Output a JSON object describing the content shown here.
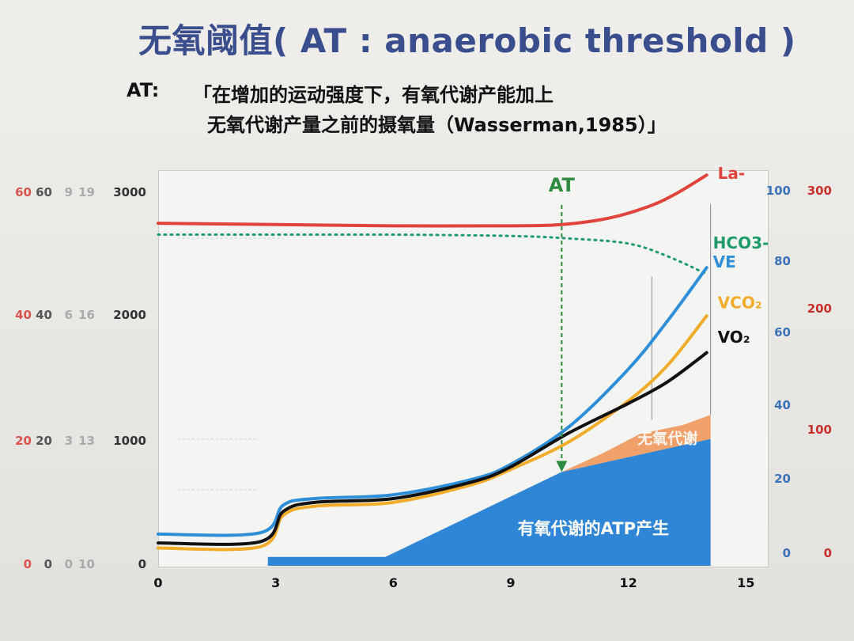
{
  "slide": {
    "title": "无氧阈值( AT : anaerobic threshold )",
    "definition_label": "AT:",
    "definition_line1": "「在增加的运动强度下，有氧代谢产能加上",
    "definition_line2": "无氧代谢产量之前的摄氧量（Wasserman,1985）」"
  },
  "chart_data": {
    "type": "line",
    "xlim": [
      0,
      15.5
    ],
    "x_ticks": [
      "0",
      "3",
      "6",
      "9",
      "12",
      "15"
    ],
    "x_tick_values": [
      0,
      3,
      6,
      9,
      12,
      15
    ],
    "ylim": [
      0,
      3100
    ],
    "left_axes": [
      {
        "color": "#d9534f",
        "ticks": [
          "0",
          "20",
          "40",
          "60"
        ]
      },
      {
        "color": "#555555",
        "ticks": [
          "0",
          "20",
          "40",
          "60"
        ]
      },
      {
        "color": "#aaaaaa",
        "ticks": [
          "0",
          "3",
          "6",
          "9"
        ]
      },
      {
        "color": "#aaaaaa",
        "ticks": [
          "10",
          "13",
          "16",
          "19"
        ]
      },
      {
        "color": "#333333",
        "ticks": [
          "0",
          "1000",
          "2000",
          "3000"
        ]
      }
    ],
    "right_axes": [
      {
        "color": "#3b72b8",
        "ticks": [
          "0",
          "20",
          "40",
          "60",
          "80",
          "100"
        ]
      },
      {
        "color": "#c9302c",
        "ticks": [
          "0",
          "100",
          "200",
          "300"
        ]
      }
    ],
    "series": [
      {
        "name": "La-",
        "color": "#e0443c",
        "dashed": false,
        "x": [
          0,
          3,
          6,
          9,
          10.3,
          11.5,
          12.5,
          13.2,
          14
        ],
        "y": [
          2700,
          2690,
          2680,
          2680,
          2690,
          2740,
          2830,
          2930,
          3080
        ]
      },
      {
        "name": "HCO3-",
        "color": "#1e9b6a",
        "dashed": true,
        "x": [
          0,
          3,
          6,
          9,
          10.5,
          12,
          13,
          14
        ],
        "y": [
          2610,
          2610,
          2610,
          2600,
          2580,
          2540,
          2440,
          2300
        ]
      },
      {
        "name": "VE",
        "color": "#2e8fd8",
        "dashed": false,
        "x": [
          0,
          2.6,
          3.2,
          4,
          6,
          8,
          9,
          10.5,
          12,
          13,
          14
        ],
        "y": [
          250,
          260,
          480,
          530,
          560,
          680,
          800,
          1100,
          1550,
          1930,
          2350
        ]
      },
      {
        "name": "VCO₂",
        "color": "#f0ac2a",
        "dashed": false,
        "x": [
          0,
          2.6,
          3.2,
          4,
          6,
          8,
          9,
          10.5,
          12,
          13,
          14
        ],
        "y": [
          140,
          150,
          400,
          470,
          500,
          640,
          760,
          980,
          1300,
          1580,
          1970
        ]
      },
      {
        "name": "VO₂",
        "color": "#111111",
        "dashed": false,
        "x": [
          0,
          2.6,
          3.2,
          4,
          6,
          8,
          9,
          10.5,
          12,
          13,
          14
        ],
        "y": [
          180,
          190,
          430,
          500,
          530,
          660,
          780,
          1050,
          1280,
          1450,
          1680
        ]
      }
    ],
    "areas": [
      {
        "label": "有氧代谢的ATP产生",
        "color": "#2f86d6",
        "points": [
          [
            2.8,
            0
          ],
          [
            2.8,
            70
          ],
          [
            5.8,
            70
          ],
          [
            10.3,
            740
          ],
          [
            14.1,
            1000
          ],
          [
            14.1,
            0
          ]
        ]
      },
      {
        "label": "无氧代谢",
        "color": "#f0a06a",
        "points": [
          [
            10.3,
            740
          ],
          [
            14.1,
            1000
          ],
          [
            14.1,
            1190
          ],
          [
            13.4,
            1110
          ],
          [
            12.3,
            1040
          ],
          [
            11.3,
            880
          ]
        ]
      }
    ],
    "at_marker": {
      "label": "AT",
      "x": 10.3,
      "y_from": 3000,
      "y_to": 740,
      "color": "#2e8a3e"
    },
    "reference_lines": [
      {
        "x": 12.6,
        "y_from": 2280,
        "y_to": 1150
      },
      {
        "x": 14.1,
        "y_from": 2850,
        "y_to": 1190
      }
    ],
    "light_dashes": [
      {
        "x_from": 0.5,
        "x_to": 2.5,
        "y": 1000
      },
      {
        "x_from": 0.5,
        "x_to": 2.5,
        "y": 600
      },
      {
        "x_from": 0.5,
        "x_to": 3.2,
        "y": 2580
      }
    ]
  }
}
